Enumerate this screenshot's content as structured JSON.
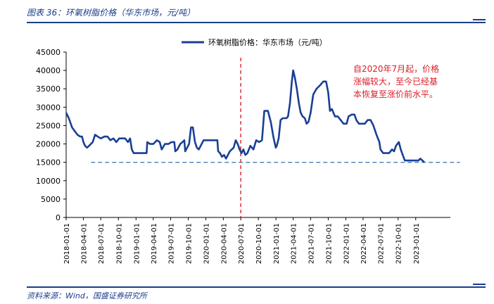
{
  "header": {
    "title": "图表 36：环氧树脂价格（华东市场，元/吨）"
  },
  "footer": {
    "source": "资料来源：Wind，国盛证券研究所"
  },
  "colors": {
    "line": "#1a3f94",
    "reference": "#4a7fb5",
    "event_marker": "#d9202a",
    "annotation": "#d9202a",
    "axis": "#000000",
    "header": "#1b3d8c"
  },
  "chart_data": {
    "type": "line",
    "title": "",
    "xlabel": "",
    "ylabel": "",
    "ylim": [
      0,
      45000
    ],
    "yticks": [
      0,
      5000,
      10000,
      15000,
      20000,
      25000,
      30000,
      35000,
      40000,
      45000
    ],
    "xlim": [
      "2018-01-01",
      "2023-07-01"
    ],
    "xticks": [
      "2018-01-01",
      "2018-04-01",
      "2018-07-01",
      "2018-10-01",
      "2019-01-01",
      "2019-04-01",
      "2019-07-01",
      "2019-10-01",
      "2020-01-01",
      "2020-04-01",
      "2020-07-01",
      "2020-10-01",
      "2021-01-01",
      "2021-04-01",
      "2021-07-01",
      "2021-10-01",
      "2022-01-01",
      "2022-04-01",
      "2022-07-01",
      "2022-10-01",
      "2023-01-01"
    ],
    "grid": false,
    "legend": "top-center",
    "series": [
      {
        "name": "环氧树脂价格：华东市场（元/吨）",
        "points": [
          [
            "2018-01-01",
            28500
          ],
          [
            "2018-01-15",
            27000
          ],
          [
            "2018-02-01",
            24500
          ],
          [
            "2018-02-15",
            23500
          ],
          [
            "2018-03-01",
            22500
          ],
          [
            "2018-03-15",
            22000
          ],
          [
            "2018-03-25",
            22000
          ],
          [
            "2018-04-01",
            20500
          ],
          [
            "2018-04-10",
            19500
          ],
          [
            "2018-04-20",
            19000
          ],
          [
            "2018-05-01",
            19500
          ],
          [
            "2018-05-10",
            20000
          ],
          [
            "2018-05-20",
            20500
          ],
          [
            "2018-06-01",
            22500
          ],
          [
            "2018-06-15",
            22000
          ],
          [
            "2018-07-01",
            21500
          ],
          [
            "2018-07-20",
            22000
          ],
          [
            "2018-08-05",
            22000
          ],
          [
            "2018-08-20",
            21000
          ],
          [
            "2018-09-05",
            21500
          ],
          [
            "2018-09-20",
            20500
          ],
          [
            "2018-10-05",
            21500
          ],
          [
            "2018-10-20",
            21500
          ],
          [
            "2018-11-05",
            21500
          ],
          [
            "2018-11-20",
            20500
          ],
          [
            "2018-12-01",
            21500
          ],
          [
            "2018-12-10",
            18500
          ],
          [
            "2018-12-20",
            17500
          ],
          [
            "2019-01-15",
            17500
          ],
          [
            "2019-02-15",
            17500
          ],
          [
            "2019-02-25",
            17500
          ],
          [
            "2019-03-01",
            20500
          ],
          [
            "2019-03-15",
            20000
          ],
          [
            "2019-04-01",
            20000
          ],
          [
            "2019-04-20",
            21000
          ],
          [
            "2019-05-05",
            20500
          ],
          [
            "2019-05-15",
            18500
          ],
          [
            "2019-06-01",
            20000
          ],
          [
            "2019-06-20",
            20000
          ],
          [
            "2019-07-05",
            20500
          ],
          [
            "2019-07-20",
            20500
          ],
          [
            "2019-07-25",
            18000
          ],
          [
            "2019-08-05",
            18500
          ],
          [
            "2019-08-20",
            20000
          ],
          [
            "2019-09-01",
            20500
          ],
          [
            "2019-09-10",
            21000
          ],
          [
            "2019-09-15",
            18000
          ],
          [
            "2019-09-20",
            18500
          ],
          [
            "2019-10-05",
            20000
          ],
          [
            "2019-10-15",
            24500
          ],
          [
            "2019-10-25",
            24500
          ],
          [
            "2019-11-05",
            20500
          ],
          [
            "2019-11-15",
            19000
          ],
          [
            "2019-11-25",
            18500
          ],
          [
            "2019-12-05",
            19500
          ],
          [
            "2019-12-20",
            21000
          ],
          [
            "2020-01-15",
            21000
          ],
          [
            "2020-02-15",
            21000
          ],
          [
            "2020-03-01",
            21000
          ],
          [
            "2020-03-05",
            18000
          ],
          [
            "2020-03-15",
            17500
          ],
          [
            "2020-03-25",
            16500
          ],
          [
            "2020-04-05",
            17000
          ],
          [
            "2020-04-15",
            16000
          ],
          [
            "2020-04-25",
            17000
          ],
          [
            "2020-05-05",
            18000
          ],
          [
            "2020-05-15",
            18500
          ],
          [
            "2020-05-25",
            19000
          ],
          [
            "2020-06-05",
            21000
          ],
          [
            "2020-06-15",
            20000
          ],
          [
            "2020-06-25",
            18500
          ],
          [
            "2020-07-05",
            17500
          ],
          [
            "2020-07-15",
            18500
          ],
          [
            "2020-07-25",
            17000
          ],
          [
            "2020-08-05",
            17500
          ],
          [
            "2020-08-20",
            19500
          ],
          [
            "2020-09-05",
            18500
          ],
          [
            "2020-09-20",
            21000
          ],
          [
            "2020-10-05",
            20500
          ],
          [
            "2020-10-20",
            21000
          ],
          [
            "2020-11-01",
            29000
          ],
          [
            "2020-11-20",
            29000
          ],
          [
            "2020-12-05",
            26000
          ],
          [
            "2020-12-20",
            21500
          ],
          [
            "2020-12-31",
            19000
          ],
          [
            "2021-01-05",
            19500
          ],
          [
            "2021-01-15",
            21500
          ],
          [
            "2021-01-25",
            26500
          ],
          [
            "2021-02-05",
            27000
          ],
          [
            "2021-02-25",
            27000
          ],
          [
            "2021-03-05",
            27500
          ],
          [
            "2021-03-15",
            31000
          ],
          [
            "2021-03-25",
            37000
          ],
          [
            "2021-04-01",
            40000
          ],
          [
            "2021-04-10",
            38000
          ],
          [
            "2021-04-20",
            35000
          ],
          [
            "2021-05-01",
            31000
          ],
          [
            "2021-05-10",
            28500
          ],
          [
            "2021-05-20",
            27500
          ],
          [
            "2021-06-01",
            27000
          ],
          [
            "2021-06-10",
            25500
          ],
          [
            "2021-06-20",
            26000
          ],
          [
            "2021-07-01",
            28500
          ],
          [
            "2021-07-15",
            33500
          ],
          [
            "2021-08-01",
            35000
          ],
          [
            "2021-08-20",
            36000
          ],
          [
            "2021-09-05",
            37000
          ],
          [
            "2021-09-20",
            37000
          ],
          [
            "2021-10-01",
            34000
          ],
          [
            "2021-10-10",
            29000
          ],
          [
            "2021-10-20",
            29500
          ],
          [
            "2021-11-05",
            27500
          ],
          [
            "2021-11-20",
            27500
          ],
          [
            "2021-12-05",
            26500
          ],
          [
            "2021-12-20",
            25500
          ],
          [
            "2022-01-05",
            25500
          ],
          [
            "2022-01-15",
            27500
          ],
          [
            "2022-02-01",
            28000
          ],
          [
            "2022-02-15",
            28000
          ],
          [
            "2022-02-25",
            26500
          ],
          [
            "2022-03-10",
            25500
          ],
          [
            "2022-03-25",
            25500
          ],
          [
            "2022-04-10",
            25500
          ],
          [
            "2022-04-25",
            26500
          ],
          [
            "2022-05-10",
            26500
          ],
          [
            "2022-05-25",
            25000
          ],
          [
            "2022-06-10",
            22500
          ],
          [
            "2022-06-25",
            20500
          ],
          [
            "2022-07-01",
            18500
          ],
          [
            "2022-07-15",
            17500
          ],
          [
            "2022-07-30",
            17500
          ],
          [
            "2022-08-15",
            17500
          ],
          [
            "2022-08-30",
            18500
          ],
          [
            "2022-09-10",
            18000
          ],
          [
            "2022-09-20",
            19500
          ],
          [
            "2022-10-05",
            20500
          ],
          [
            "2022-10-15",
            18500
          ],
          [
            "2022-10-25",
            17000
          ],
          [
            "2022-11-05",
            15500
          ],
          [
            "2022-11-20",
            15500
          ],
          [
            "2022-12-10",
            15500
          ],
          [
            "2023-01-01",
            15500
          ],
          [
            "2023-01-15",
            15500
          ],
          [
            "2023-01-25",
            16000
          ],
          [
            "2023-02-05",
            15500
          ],
          [
            "2023-02-15",
            15000
          ]
        ]
      }
    ],
    "reference_line": {
      "y": 15000,
      "style": "dashed"
    },
    "event_marker": {
      "x": "2020-07-01",
      "style": "dashed"
    },
    "annotation": {
      "lines": [
        "自2020年7月起，价格",
        "涨幅较大，至今已经基",
        "本恢复至涨价前水平。"
      ]
    }
  }
}
